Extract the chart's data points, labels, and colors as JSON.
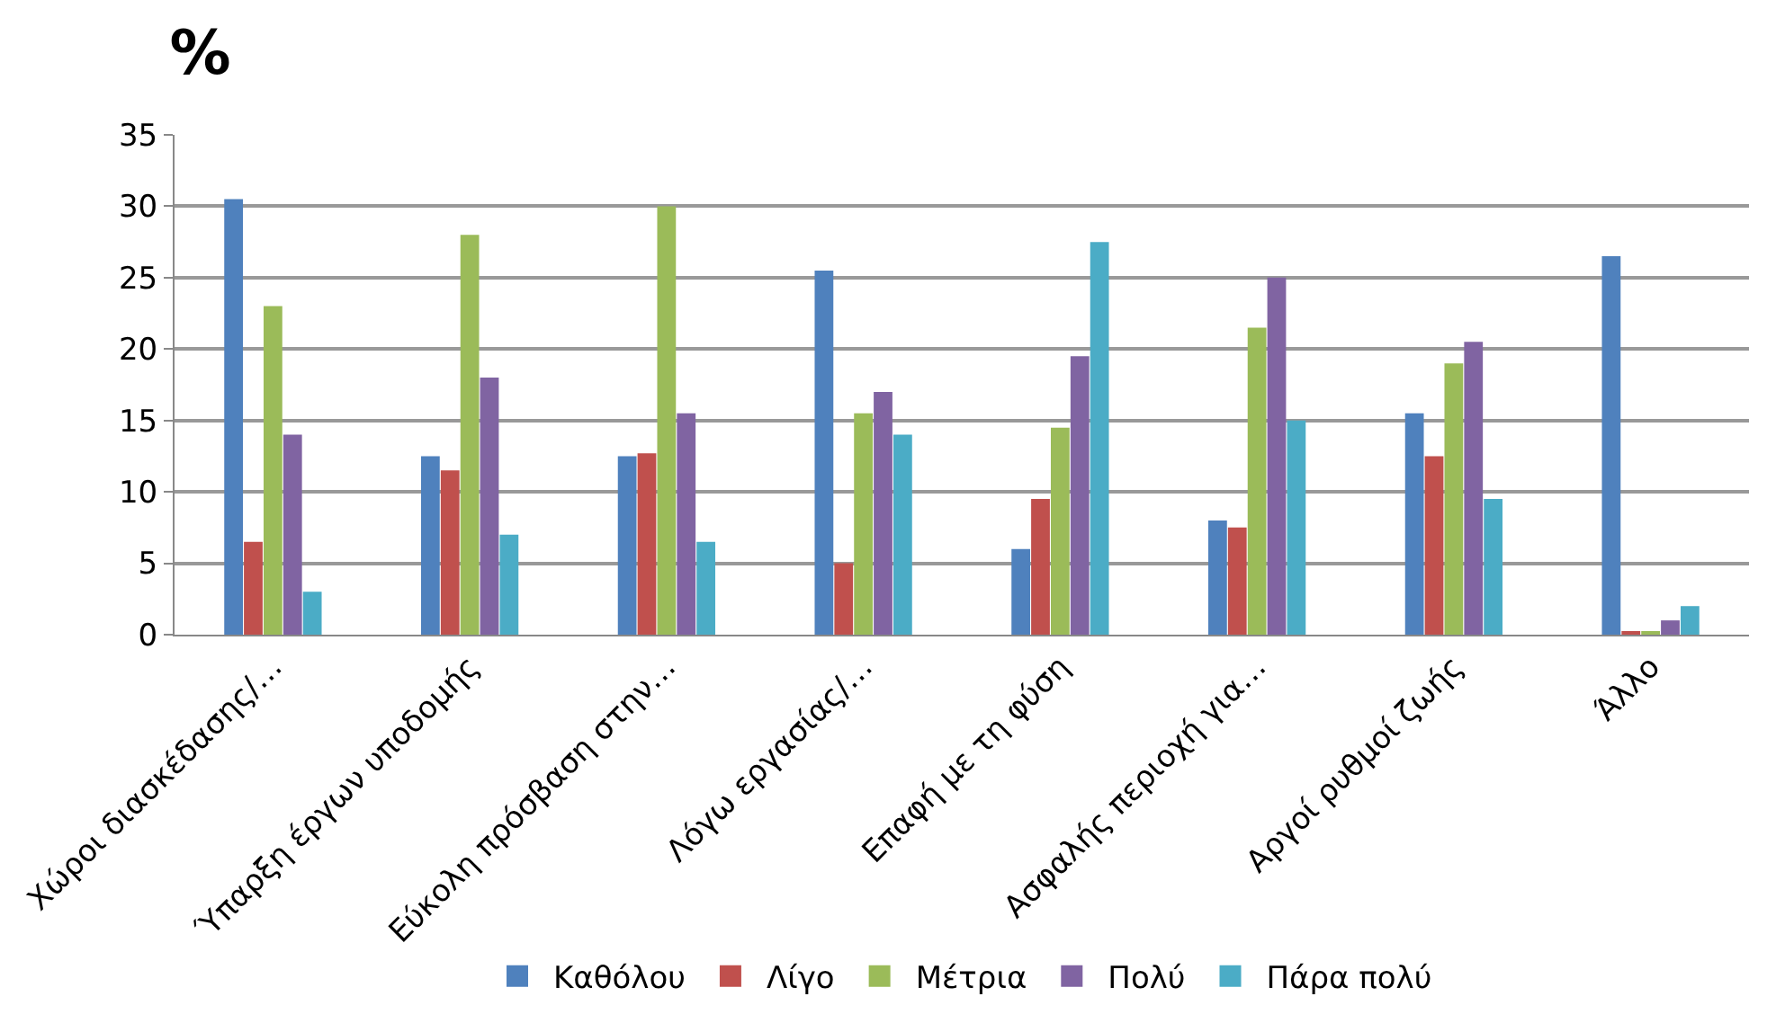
{
  "chart_data": {
    "type": "bar",
    "title": "%",
    "categories": [
      "Χώροι διασκέδασης/…",
      "Ύπαρξη έργων υποδομής",
      "Εύκολη πρόσβαση στην…",
      "Λόγω εργασίας/…",
      "Επαφή με τη φύση",
      "Ασφαλής περιοχή για…",
      "Αργοί ρυθμοί ζωής",
      "Άλλο"
    ],
    "series": [
      {
        "name": "Καθόλου",
        "color": "#4f81bd",
        "values": [
          30.5,
          12.5,
          12.5,
          25.5,
          6,
          8,
          15.5,
          26.5
        ]
      },
      {
        "name": "Λίγο",
        "color": "#c0504d",
        "values": [
          6.5,
          11.5,
          12.7,
          5,
          9.5,
          7.5,
          12.5,
          0.2
        ]
      },
      {
        "name": "Μέτρια",
        "color": "#9bbb59",
        "values": [
          23,
          28,
          30,
          15.5,
          14.5,
          21.5,
          19,
          0.2
        ]
      },
      {
        "name": "Πολύ",
        "color": "#8064a2",
        "values": [
          14,
          18,
          15.5,
          17,
          19.5,
          25,
          20.5,
          1
        ]
      },
      {
        "name": "Πάρα πολύ",
        "color": "#4bacc6",
        "values": [
          3,
          7,
          6.5,
          14,
          27.5,
          15,
          9.5,
          2
        ]
      }
    ],
    "ylim": [
      0,
      35
    ],
    "yticks": [
      0,
      5,
      10,
      15,
      20,
      25,
      30,
      35
    ],
    "grid": "y",
    "legend": "bottom"
  }
}
